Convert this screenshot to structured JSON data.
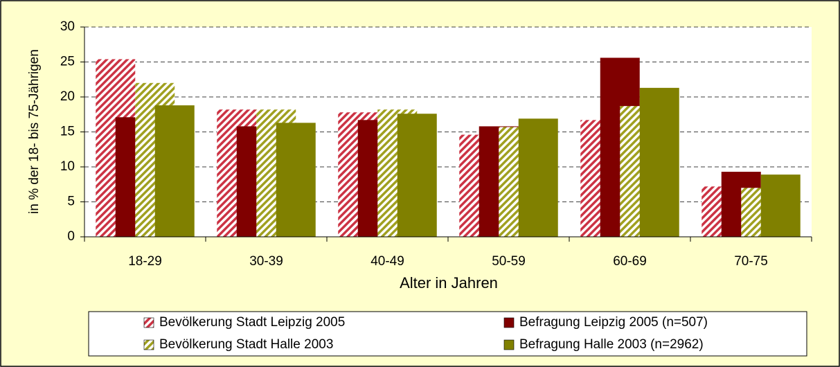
{
  "chart_data": {
    "type": "bar",
    "xlabel": "Alter in Jahren",
    "ylabel": "in % der 18- bis 75-Jährigen",
    "categories": [
      "18-29",
      "30-39",
      "40-49",
      "50-59",
      "60-69",
      "70-75"
    ],
    "series": [
      {
        "name": "Bevölkerung Stadt Leipzig 2005",
        "color": "#cc3344",
        "hatch": true,
        "values": [
          25.4,
          18.2,
          17.8,
          14.6,
          16.7,
          7.2
        ]
      },
      {
        "name": "Befragung Leipzig 2005 (n=507)",
        "color": "#800000",
        "hatch": false,
        "values": [
          17.1,
          15.8,
          16.7,
          15.8,
          25.6,
          9.3
        ]
      },
      {
        "name": "Bevölkerung Stadt Halle 2003",
        "color": "#a0a020",
        "hatch": true,
        "values": [
          22.0,
          18.2,
          18.2,
          15.7,
          18.7,
          7.0
        ]
      },
      {
        "name": "Befragung Halle 2003 (n=2962)",
        "color": "#808000",
        "hatch": false,
        "values": [
          18.8,
          16.3,
          17.6,
          16.9,
          21.3,
          8.9
        ]
      }
    ],
    "ylim": [
      0,
      30
    ],
    "yticks": [
      0,
      5,
      10,
      15,
      20,
      25,
      30
    ],
    "grid": true,
    "legend": "bottom"
  }
}
